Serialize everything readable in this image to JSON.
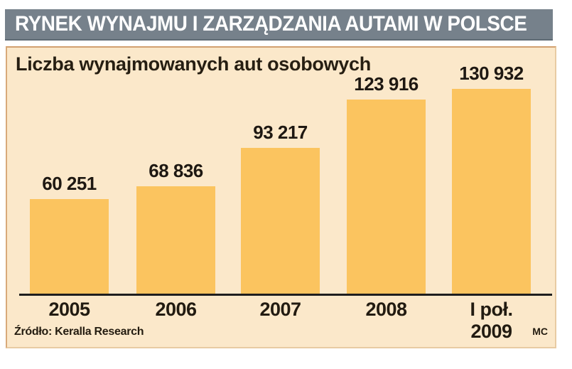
{
  "header": {
    "title": "RYNEK WYNAJMU I ZARZĄDZANIA AUTAMI W POLSCE"
  },
  "chart": {
    "subtitle": "Liczba wynajmowanych aut osobowych",
    "source": "Źródło: Keralla Research",
    "credit": "MC"
  },
  "colors": {
    "header_bg": "#76818B",
    "panel_bg": "#FBE8CA",
    "bar": "#FBC45F",
    "text": "#1E1812",
    "axis": "#1E1E1E"
  },
  "chart_data": {
    "type": "bar",
    "title": "Liczba wynajmowanych aut osobowych",
    "categories": [
      "2005",
      "2006",
      "2007",
      "2008",
      "I poł.\n2009"
    ],
    "values": [
      60251,
      68836,
      93217,
      123916,
      130932
    ],
    "value_labels": [
      "60 251",
      "68 836",
      "93 217",
      "123 916",
      "130 932"
    ],
    "xlabel": "",
    "ylabel": "",
    "ylim": [
      0,
      140000
    ],
    "grid": false,
    "legend": "none",
    "bar_color": "#FBC45F",
    "background": "#FBE8CA"
  }
}
